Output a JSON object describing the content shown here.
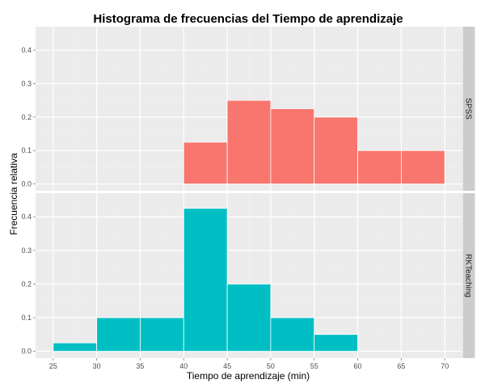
{
  "chart_data": {
    "type": "bar",
    "title": "Histograma de frecuencias del Tiempo de aprendizaje",
    "xlabel": "Tiempo de aprendizaje (min)",
    "ylabel": "Frecuencia relativa",
    "xlim": [
      25,
      70
    ],
    "ylim": [
      0,
      0.45
    ],
    "x_ticks": [
      25,
      30,
      35,
      40,
      45,
      50,
      55,
      60,
      65,
      70
    ],
    "y_ticks": [
      0.0,
      0.1,
      0.2,
      0.3,
      0.4
    ],
    "y_tick_labels": [
      "0.0",
      "0.1",
      "0.2",
      "0.3",
      "0.4"
    ],
    "bin_width": 5,
    "grid": true,
    "panels": [
      {
        "name": "SPSS",
        "color": "#F8766D",
        "bins": [
          {
            "start": 40,
            "end": 45,
            "value": 0.125
          },
          {
            "start": 45,
            "end": 50,
            "value": 0.25
          },
          {
            "start": 50,
            "end": 55,
            "value": 0.225
          },
          {
            "start": 55,
            "end": 60,
            "value": 0.2
          },
          {
            "start": 60,
            "end": 65,
            "value": 0.1
          },
          {
            "start": 65,
            "end": 70,
            "value": 0.1
          }
        ]
      },
      {
        "name": "RKTeaching",
        "color": "#00BFC4",
        "bins": [
          {
            "start": 25,
            "end": 30,
            "value": 0.025
          },
          {
            "start": 30,
            "end": 35,
            "value": 0.1
          },
          {
            "start": 35,
            "end": 40,
            "value": 0.1
          },
          {
            "start": 40,
            "end": 45,
            "value": 0.425
          },
          {
            "start": 45,
            "end": 50,
            "value": 0.2
          },
          {
            "start": 50,
            "end": 55,
            "value": 0.1
          },
          {
            "start": 55,
            "end": 60,
            "value": 0.05
          }
        ]
      }
    ]
  },
  "colors": {
    "panel_background": "#EBEBEB",
    "grid_major": "#FFFFFF",
    "grid_minor": "#F2F2F2",
    "strip_background": "#CCCCCC"
  }
}
